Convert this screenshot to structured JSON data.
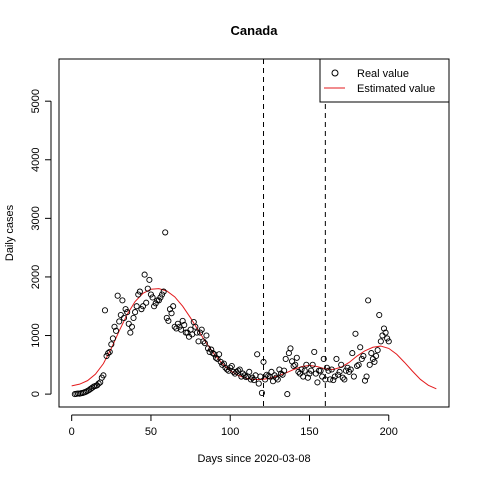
{
  "chart_data": {
    "type": "scatter",
    "title": "Canada",
    "xlabel": "Days since 2020-03-08",
    "ylabel": "Daily cases",
    "xlim": [
      -8,
      238
    ],
    "ylim": [
      -220,
      5720
    ],
    "xticks": [
      0,
      50,
      100,
      150,
      200
    ],
    "yticks": [
      0,
      1000,
      2000,
      3000,
      4000,
      5000
    ],
    "grid": false,
    "legend_position": "top-right",
    "vlines": [
      121,
      160
    ],
    "colors": {
      "real": "#000000",
      "estimated": "#e31a1c",
      "vline": "#000000"
    },
    "series": [
      {
        "name": "Real value",
        "style": "open-circle",
        "points": [
          [
            2,
            0
          ],
          [
            3,
            5
          ],
          [
            4,
            10
          ],
          [
            5,
            8
          ],
          [
            6,
            15
          ],
          [
            7,
            20
          ],
          [
            8,
            30
          ],
          [
            9,
            40
          ],
          [
            10,
            55
          ],
          [
            11,
            70
          ],
          [
            12,
            90
          ],
          [
            13,
            110
          ],
          [
            14,
            130
          ],
          [
            15,
            140
          ],
          [
            16,
            150
          ],
          [
            17,
            180
          ],
          [
            18,
            200
          ],
          [
            19,
            280
          ],
          [
            20,
            320
          ],
          [
            21,
            1430
          ],
          [
            22,
            650
          ],
          [
            23,
            700
          ],
          [
            24,
            720
          ],
          [
            25,
            850
          ],
          [
            26,
            950
          ],
          [
            27,
            1150
          ],
          [
            28,
            1080
          ],
          [
            29,
            1680
          ],
          [
            30,
            1240
          ],
          [
            31,
            1350
          ],
          [
            32,
            1600
          ],
          [
            33,
            1300
          ],
          [
            34,
            1450
          ],
          [
            35,
            1400
          ],
          [
            36,
            1200
          ],
          [
            37,
            1050
          ],
          [
            38,
            1150
          ],
          [
            39,
            1300
          ],
          [
            40,
            1400
          ],
          [
            41,
            1500
          ],
          [
            42,
            1700
          ],
          [
            43,
            1750
          ],
          [
            44,
            1450
          ],
          [
            45,
            1500
          ],
          [
            46,
            2040
          ],
          [
            47,
            1560
          ],
          [
            48,
            1800
          ],
          [
            49,
            1950
          ],
          [
            50,
            1700
          ],
          [
            51,
            1650
          ],
          [
            52,
            1500
          ],
          [
            53,
            1550
          ],
          [
            54,
            1600
          ],
          [
            55,
            1600
          ],
          [
            56,
            1650
          ],
          [
            57,
            1700
          ],
          [
            58,
            1750
          ],
          [
            59,
            2760
          ],
          [
            60,
            1300
          ],
          [
            61,
            1250
          ],
          [
            62,
            1450
          ],
          [
            63,
            1380
          ],
          [
            64,
            1500
          ],
          [
            65,
            1150
          ],
          [
            66,
            1120
          ],
          [
            67,
            1200
          ],
          [
            68,
            1150
          ],
          [
            69,
            1100
          ],
          [
            70,
            1250
          ],
          [
            71,
            1180
          ],
          [
            72,
            1050
          ],
          [
            73,
            1050
          ],
          [
            74,
            980
          ],
          [
            75,
            1100
          ],
          [
            76,
            1020
          ],
          [
            77,
            1230
          ],
          [
            78,
            1150
          ],
          [
            79,
            1050
          ],
          [
            80,
            900
          ],
          [
            81,
            1050
          ],
          [
            82,
            1100
          ],
          [
            83,
            900
          ],
          [
            84,
            870
          ],
          [
            85,
            1000
          ],
          [
            86,
            780
          ],
          [
            87,
            720
          ],
          [
            88,
            760
          ],
          [
            89,
            700
          ],
          [
            90,
            680
          ],
          [
            91,
            620
          ],
          [
            92,
            600
          ],
          [
            93,
            680
          ],
          [
            94,
            550
          ],
          [
            95,
            500
          ],
          [
            96,
            520
          ],
          [
            97,
            450
          ],
          [
            98,
            420
          ],
          [
            99,
            400
          ],
          [
            100,
            450
          ],
          [
            101,
            480
          ],
          [
            102,
            380
          ],
          [
            103,
            350
          ],
          [
            104,
            380
          ],
          [
            105,
            400
          ],
          [
            106,
            420
          ],
          [
            107,
            300
          ],
          [
            108,
            350
          ],
          [
            109,
            320
          ],
          [
            110,
            290
          ],
          [
            111,
            300
          ],
          [
            112,
            380
          ],
          [
            113,
            250
          ],
          [
            114,
            280
          ],
          [
            115,
            240
          ],
          [
            116,
            320
          ],
          [
            117,
            680
          ],
          [
            118,
            180
          ],
          [
            119,
            300
          ],
          [
            120,
            20
          ],
          [
            121,
            550
          ],
          [
            122,
            250
          ],
          [
            123,
            330
          ],
          [
            124,
            310
          ],
          [
            125,
            300
          ],
          [
            126,
            380
          ],
          [
            127,
            220
          ],
          [
            128,
            320
          ],
          [
            129,
            280
          ],
          [
            130,
            250
          ],
          [
            131,
            420
          ],
          [
            132,
            350
          ],
          [
            133,
            330
          ],
          [
            134,
            400
          ],
          [
            135,
            600
          ],
          [
            136,
            0
          ],
          [
            137,
            700
          ],
          [
            138,
            780
          ],
          [
            139,
            560
          ],
          [
            140,
            480
          ],
          [
            141,
            500
          ],
          [
            142,
            620
          ],
          [
            143,
            380
          ],
          [
            144,
            350
          ],
          [
            145,
            420
          ],
          [
            146,
            300
          ],
          [
            147,
            400
          ],
          [
            148,
            500
          ],
          [
            149,
            280
          ],
          [
            150,
            350
          ],
          [
            151,
            400
          ],
          [
            152,
            500
          ],
          [
            153,
            720
          ],
          [
            154,
            350
          ],
          [
            155,
            200
          ],
          [
            156,
            400
          ],
          [
            157,
            400
          ],
          [
            158,
            300
          ],
          [
            159,
            600
          ],
          [
            160,
            250
          ],
          [
            161,
            450
          ],
          [
            162,
            400
          ],
          [
            163,
            250
          ],
          [
            164,
            420
          ],
          [
            165,
            240
          ],
          [
            166,
            300
          ],
          [
            167,
            600
          ],
          [
            168,
            330
          ],
          [
            169,
            380
          ],
          [
            170,
            500
          ],
          [
            171,
            280
          ],
          [
            172,
            250
          ],
          [
            173,
            400
          ],
          [
            174,
            450
          ],
          [
            175,
            380
          ],
          [
            176,
            420
          ],
          [
            177,
            700
          ],
          [
            178,
            300
          ],
          [
            179,
            1030
          ],
          [
            180,
            480
          ],
          [
            181,
            500
          ],
          [
            182,
            800
          ],
          [
            183,
            600
          ],
          [
            184,
            650
          ],
          [
            185,
            230
          ],
          [
            186,
            300
          ],
          [
            187,
            1600
          ],
          [
            188,
            500
          ],
          [
            189,
            700
          ],
          [
            190,
            600
          ],
          [
            191,
            550
          ],
          [
            192,
            650
          ],
          [
            193,
            750
          ],
          [
            194,
            1350
          ],
          [
            195,
            900
          ],
          [
            196,
            1000
          ],
          [
            197,
            1120
          ],
          [
            198,
            1050
          ],
          [
            199,
            950
          ],
          [
            200,
            900
          ]
        ]
      },
      {
        "name": "Estimated value",
        "style": "line",
        "points": [
          [
            0,
            140
          ],
          [
            5,
            170
          ],
          [
            10,
            230
          ],
          [
            15,
            340
          ],
          [
            20,
            520
          ],
          [
            25,
            780
          ],
          [
            30,
            1080
          ],
          [
            35,
            1360
          ],
          [
            40,
            1580
          ],
          [
            45,
            1720
          ],
          [
            50,
            1790
          ],
          [
            55,
            1800
          ],
          [
            60,
            1760
          ],
          [
            65,
            1660
          ],
          [
            70,
            1500
          ],
          [
            75,
            1300
          ],
          [
            80,
            1080
          ],
          [
            85,
            870
          ],
          [
            90,
            680
          ],
          [
            95,
            520
          ],
          [
            100,
            400
          ],
          [
            105,
            320
          ],
          [
            110,
            270
          ],
          [
            115,
            250
          ],
          [
            120,
            250
          ],
          [
            125,
            270
          ],
          [
            130,
            310
          ],
          [
            135,
            360
          ],
          [
            140,
            420
          ],
          [
            145,
            470
          ],
          [
            150,
            490
          ],
          [
            155,
            470
          ],
          [
            160,
            430
          ],
          [
            165,
            420
          ],
          [
            170,
            460
          ],
          [
            175,
            540
          ],
          [
            180,
            650
          ],
          [
            185,
            740
          ],
          [
            190,
            800
          ],
          [
            195,
            820
          ],
          [
            200,
            780
          ],
          [
            205,
            680
          ],
          [
            210,
            540
          ],
          [
            215,
            390
          ],
          [
            220,
            250
          ],
          [
            225,
            150
          ],
          [
            230,
            90
          ]
        ]
      }
    ]
  }
}
